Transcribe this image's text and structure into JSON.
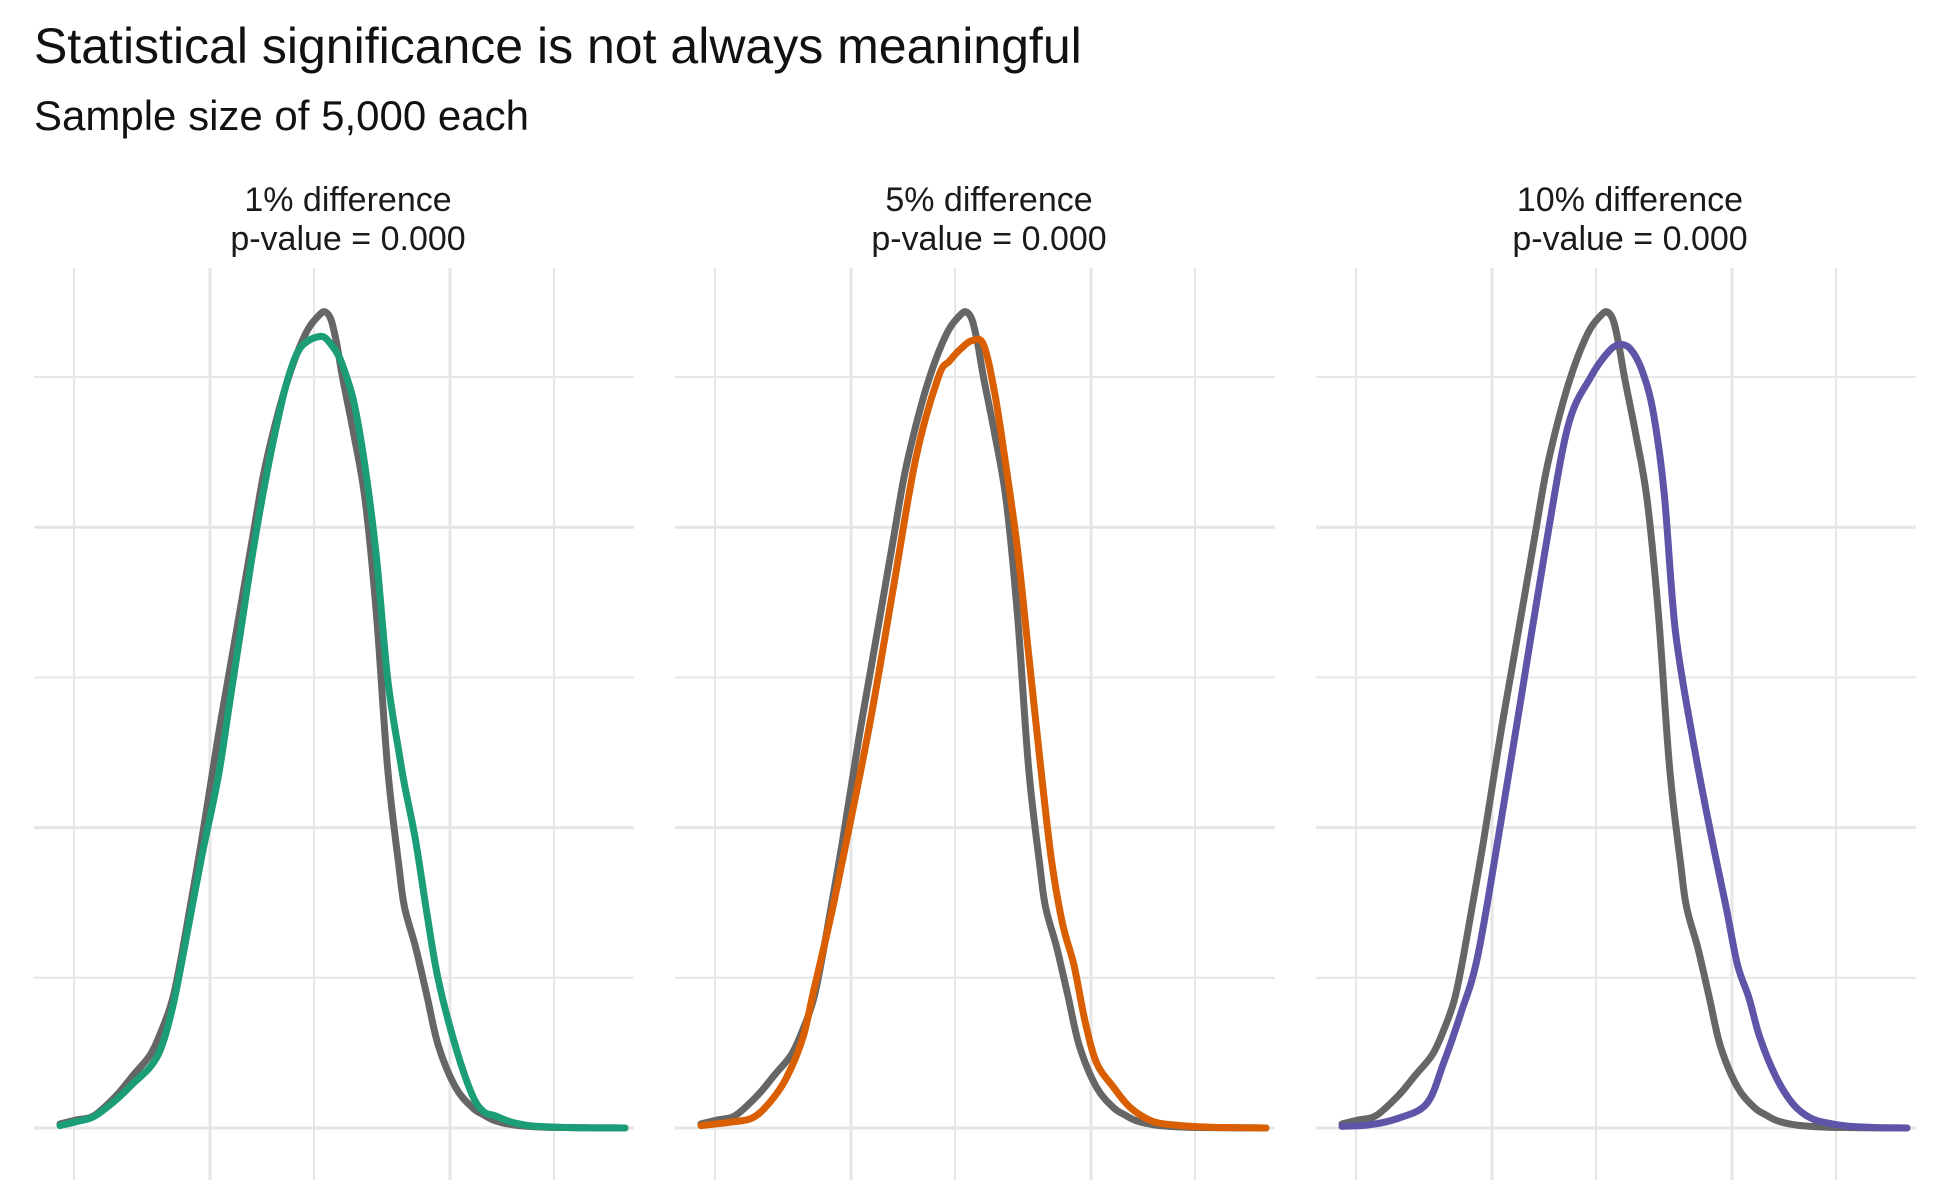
{
  "chart_data": {
    "type": "line",
    "title": "Statistical significance is not always meaningful",
    "subtitle": "Sample size of 5,000 each",
    "xlabel": "",
    "ylabel": "",
    "x_tick_labels_visible": false,
    "y_tick_labels_visible": false,
    "grid": true,
    "xlim": [
      0,
      100
    ],
    "ylim": [
      0,
      1
    ],
    "panels": [
      {
        "label_line1": "1% difference",
        "label_line2": "p-value = 0.000",
        "series": [
          {
            "color": "#666666",
            "x": [
              0,
              3,
              6,
              10,
              13,
              16,
              18,
              20,
              22,
              25,
              28,
              30,
              32,
              34,
              36,
              38,
              40,
              42,
              44,
              46,
              47,
              48,
              49,
              50,
              52,
              54,
              56,
              58,
              60,
              61,
              63,
              65,
              67,
              70,
              73,
              75,
              77,
              80,
              83,
              86,
              90,
              93,
              96,
              100
            ],
            "y": [
              0.005,
              0.01,
              0.015,
              0.04,
              0.065,
              0.09,
              0.12,
              0.16,
              0.23,
              0.35,
              0.48,
              0.56,
              0.64,
              0.72,
              0.8,
              0.86,
              0.91,
              0.95,
              0.98,
              0.997,
              1.0,
              0.99,
              0.96,
              0.92,
              0.85,
              0.77,
              0.63,
              0.44,
              0.32,
              0.27,
              0.22,
              0.16,
              0.1,
              0.05,
              0.025,
              0.016,
              0.009,
              0.004,
              0.002,
              0.001,
              0.0005,
              0.0002,
              0.0001,
              0.0
            ]
          },
          {
            "color": "#1b9e77",
            "x": [
              0,
              3,
              6,
              10,
              13,
              16,
              18,
              20,
              22,
              25,
              28,
              30,
              32,
              34,
              36,
              38,
              40,
              42,
              44,
              46,
              47,
              48,
              49,
              50,
              52,
              54,
              56,
              58,
              60,
              61,
              63,
              65,
              67,
              70,
              73,
              75,
              77,
              80,
              83,
              86,
              90,
              93,
              96,
              100
            ],
            "y": [
              0.003,
              0.008,
              0.014,
              0.035,
              0.055,
              0.075,
              0.1,
              0.15,
              0.22,
              0.33,
              0.43,
              0.52,
              0.61,
              0.7,
              0.78,
              0.85,
              0.91,
              0.95,
              0.965,
              0.97,
              0.968,
              0.96,
              0.95,
              0.935,
              0.89,
              0.81,
              0.7,
              0.55,
              0.46,
              0.42,
              0.35,
              0.26,
              0.18,
              0.1,
              0.04,
              0.02,
              0.015,
              0.007,
              0.003,
              0.0015,
              0.0006,
              0.0002,
              0.0001,
              0.0
            ]
          }
        ]
      },
      {
        "label_line1": "5% difference",
        "label_line2": "p-value = 0.000",
        "series": [
          {
            "color": "#666666",
            "x": [
              0,
              3,
              6,
              10,
              13,
              16,
              18,
              20,
              22,
              25,
              28,
              30,
              32,
              34,
              36,
              38,
              40,
              42,
              44,
              46,
              47,
              48,
              49,
              50,
              52,
              54,
              56,
              58,
              60,
              61,
              63,
              65,
              67,
              70,
              73,
              75,
              77,
              80,
              83,
              86,
              90,
              93,
              96,
              100
            ],
            "y": [
              0.005,
              0.01,
              0.015,
              0.04,
              0.065,
              0.09,
              0.12,
              0.16,
              0.23,
              0.35,
              0.48,
              0.56,
              0.64,
              0.72,
              0.8,
              0.86,
              0.91,
              0.95,
              0.98,
              0.997,
              1.0,
              0.99,
              0.96,
              0.92,
              0.85,
              0.77,
              0.63,
              0.44,
              0.32,
              0.27,
              0.22,
              0.16,
              0.1,
              0.05,
              0.025,
              0.016,
              0.009,
              0.004,
              0.002,
              0.001,
              0.0005,
              0.0002,
              0.0001,
              0.0
            ]
          },
          {
            "color": "#d95f02",
            "x": [
              0,
              5,
              9,
              12,
              15,
              18,
              20,
              23,
              26,
              30,
              34,
              38,
              42,
              44,
              46,
              48,
              50,
              52,
              54,
              56,
              58,
              60,
              62,
              64,
              66,
              68,
              70,
              73,
              76,
              80,
              85,
              90,
              95,
              100
            ],
            "y": [
              0.003,
              0.007,
              0.012,
              0.03,
              0.06,
              0.11,
              0.17,
              0.26,
              0.36,
              0.5,
              0.66,
              0.82,
              0.92,
              0.94,
              0.955,
              0.965,
              0.96,
              0.9,
              0.81,
              0.71,
              0.58,
              0.45,
              0.33,
              0.25,
              0.2,
              0.13,
              0.08,
              0.05,
              0.025,
              0.008,
              0.003,
              0.001,
              0.0005,
              0.0
            ]
          }
        ]
      },
      {
        "label_line1": "10% difference",
        "label_line2": "p-value = 0.000",
        "series": [
          {
            "color": "#666666",
            "x": [
              0,
              3,
              6,
              10,
              13,
              16,
              18,
              20,
              22,
              25,
              28,
              30,
              32,
              34,
              36,
              38,
              40,
              42,
              44,
              46,
              47,
              48,
              49,
              50,
              52,
              54,
              56,
              58,
              60,
              61,
              63,
              65,
              67,
              70,
              73,
              75,
              77,
              80,
              83,
              86,
              90,
              93,
              96,
              100
            ],
            "y": [
              0.005,
              0.01,
              0.015,
              0.04,
              0.065,
              0.09,
              0.12,
              0.16,
              0.23,
              0.35,
              0.48,
              0.56,
              0.64,
              0.72,
              0.8,
              0.86,
              0.91,
              0.95,
              0.98,
              0.997,
              1.0,
              0.99,
              0.96,
              0.92,
              0.85,
              0.77,
              0.63,
              0.44,
              0.32,
              0.27,
              0.22,
              0.16,
              0.1,
              0.05,
              0.025,
              0.016,
              0.009,
              0.004,
              0.002,
              0.001,
              0.0005,
              0.0002,
              0.0001,
              0.0
            ]
          },
          {
            "color": "#5e55a8",
            "x": [
              0,
              5,
              10,
              15,
              18,
              21,
              24,
              28,
              32,
              36,
              40,
              44,
              47,
              49,
              51,
              53,
              55,
              57,
              59,
              62,
              65,
              68,
              70,
              72,
              74,
              77,
              80,
              83,
              86,
              90,
              95,
              100
            ],
            "y": [
              0.002,
              0.004,
              0.012,
              0.03,
              0.08,
              0.14,
              0.21,
              0.37,
              0.54,
              0.71,
              0.86,
              0.92,
              0.95,
              0.96,
              0.955,
              0.93,
              0.88,
              0.78,
              0.61,
              0.48,
              0.37,
              0.27,
              0.2,
              0.16,
              0.11,
              0.06,
              0.028,
              0.012,
              0.006,
              0.002,
              0.0005,
              0.0
            ]
          }
        ]
      }
    ]
  }
}
